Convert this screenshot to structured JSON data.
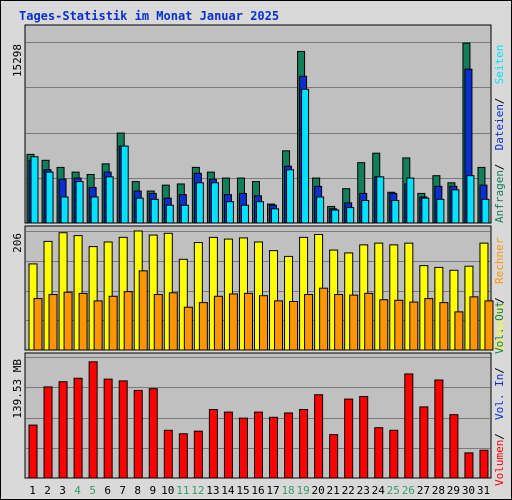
{
  "title": "Tages-Statistik im Monat Januar 2025",
  "colors": {
    "background": "#d9d9d9",
    "plot_bg": "#c0c0c0",
    "hits": "#137f5a",
    "files": "#0a2fd0",
    "pages": "#00e2ff",
    "visits": "#ffff00",
    "sites": "#ff9500",
    "kbytes": "#ff0000",
    "weekend": "#3b9a6e",
    "title": "#0a2fd0"
  },
  "chart_data": [
    {
      "type": "bar",
      "panel": "top",
      "ytick": "15298",
      "ymax": 15298,
      "categories": [
        "1",
        "2",
        "3",
        "4",
        "5",
        "6",
        "7",
        "8",
        "9",
        "10",
        "11",
        "12",
        "13",
        "14",
        "15",
        "16",
        "17",
        "18",
        "19",
        "20",
        "21",
        "22",
        "23",
        "24",
        "25",
        "26",
        "27",
        "28",
        "29",
        "30",
        "31"
      ],
      "weekend_days": [
        "4",
        "5",
        "11",
        "12",
        "18",
        "19",
        "25",
        "26"
      ],
      "legend": [
        {
          "text": "Anfragen",
          "color": "#137f5a"
        },
        {
          "text": "Dateien",
          "color": "#0a2fd0"
        },
        {
          "text": "Seiten",
          "color": "#00e2ff"
        }
      ],
      "series": [
        {
          "name": "Anfragen",
          "color": "#137f5a",
          "values": [
            5800,
            5300,
            4700,
            4300,
            4100,
            5000,
            7600,
            3500,
            2700,
            3200,
            3300,
            4700,
            4300,
            3800,
            3800,
            3500,
            1600,
            6100,
            14500,
            3800,
            1400,
            2900,
            5100,
            5900,
            2600,
            5500,
            2500,
            4000,
            3400,
            15200,
            4700
          ]
        },
        {
          "name": "Dateien",
          "color": "#0a2fd0",
          "values": [
            5300,
            4500,
            3700,
            3800,
            3000,
            4300,
            6500,
            2700,
            2500,
            2100,
            2400,
            4200,
            3700,
            2400,
            2500,
            2300,
            1500,
            4800,
            12400,
            3100,
            1200,
            1700,
            2500,
            3900,
            2500,
            3300,
            2200,
            3100,
            3100,
            13000,
            3200
          ]
        },
        {
          "name": "Seiten",
          "color": "#00e2ff",
          "values": [
            5600,
            4300,
            2200,
            3500,
            2200,
            3900,
            6500,
            2100,
            2000,
            1500,
            1500,
            3400,
            3400,
            1800,
            1500,
            1800,
            1200,
            4500,
            11300,
            2200,
            1100,
            1300,
            1900,
            3900,
            1900,
            3800,
            2100,
            2000,
            2800,
            4000,
            2000
          ]
        }
      ]
    },
    {
      "type": "bar",
      "panel": "middle",
      "ytick": "206",
      "ymax": 206,
      "categories": [
        "1",
        "2",
        "3",
        "4",
        "5",
        "6",
        "7",
        "8",
        "9",
        "10",
        "11",
        "12",
        "13",
        "14",
        "15",
        "16",
        "17",
        "18",
        "19",
        "20",
        "21",
        "22",
        "23",
        "24",
        "25",
        "26",
        "27",
        "28",
        "29",
        "30",
        "31"
      ],
      "legend": [
        {
          "text": "Besuche",
          "color": "#ffff00"
        },
        {
          "text": "Rechner",
          "color": "#ff9500"
        }
      ],
      "series": [
        {
          "name": "Besuche",
          "color": "#ffff00",
          "values": [
            149,
            188,
            203,
            198,
            179,
            187,
            195,
            206,
            199,
            202,
            157,
            186,
            195,
            192,
            194,
            187,
            172,
            162,
            195,
            200,
            173,
            168,
            182,
            185,
            182,
            185,
            146,
            143,
            138,
            145,
            185
          ]
        },
        {
          "name": "Rechner",
          "color": "#ff9500",
          "values": [
            89,
            96,
            100,
            98,
            85,
            93,
            101,
            137,
            96,
            99,
            74,
            82,
            93,
            97,
            98,
            94,
            85,
            84,
            96,
            107,
            96,
            95,
            98,
            87,
            86,
            83,
            89,
            82,
            66,
            92,
            85
          ]
        }
      ]
    },
    {
      "type": "bar",
      "panel": "bottom",
      "ytick": "139.53 MB",
      "ymax": 139.53,
      "categories": [
        "1",
        "2",
        "3",
        "4",
        "5",
        "6",
        "7",
        "8",
        "9",
        "10",
        "11",
        "12",
        "13",
        "14",
        "15",
        "16",
        "17",
        "18",
        "19",
        "20",
        "21",
        "22",
        "23",
        "24",
        "25",
        "26",
        "27",
        "28",
        "29",
        "30",
        "31"
      ],
      "legend": [
        {
          "text": "Volumen",
          "color": "#ff0000"
        },
        {
          "text": "Vol. In",
          "color": "#0a2fd0"
        },
        {
          "text": "Vol. Out",
          "color": "#137f5a"
        }
      ],
      "series": [
        {
          "name": "Volumen",
          "color": "#ff0000",
          "values": [
            61,
            105,
            111,
            115,
            134,
            114,
            112,
            101,
            103,
            55,
            51,
            54,
            79,
            76,
            69,
            76,
            70,
            75,
            79,
            96,
            50,
            91,
            94,
            58,
            55,
            120,
            82,
            113,
            73,
            29,
            32
          ]
        }
      ]
    }
  ]
}
